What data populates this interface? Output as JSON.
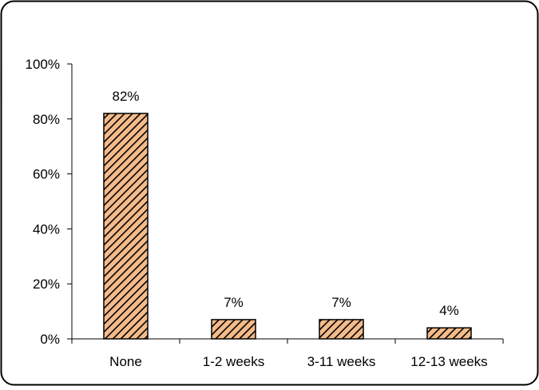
{
  "chart_data": {
    "type": "bar",
    "categories": [
      "None",
      "1-2 weeks",
      "3-11 weeks",
      "12-13 weeks"
    ],
    "values": [
      82,
      7,
      7,
      4
    ],
    "value_labels": [
      "82%",
      "7%",
      "7%",
      "4%"
    ],
    "title": "",
    "xlabel": "",
    "ylabel": "",
    "ylim": [
      0,
      100
    ],
    "y_ticks": [
      0,
      20,
      40,
      60,
      80,
      100
    ],
    "y_tick_labels": [
      "0%",
      "20%",
      "40%",
      "60%",
      "80%",
      "100%"
    ],
    "grid": false,
    "legend": "none",
    "bar_fill": "#f4bb8a",
    "bar_hatch_color": "#000000",
    "frame_color": "#000000"
  }
}
